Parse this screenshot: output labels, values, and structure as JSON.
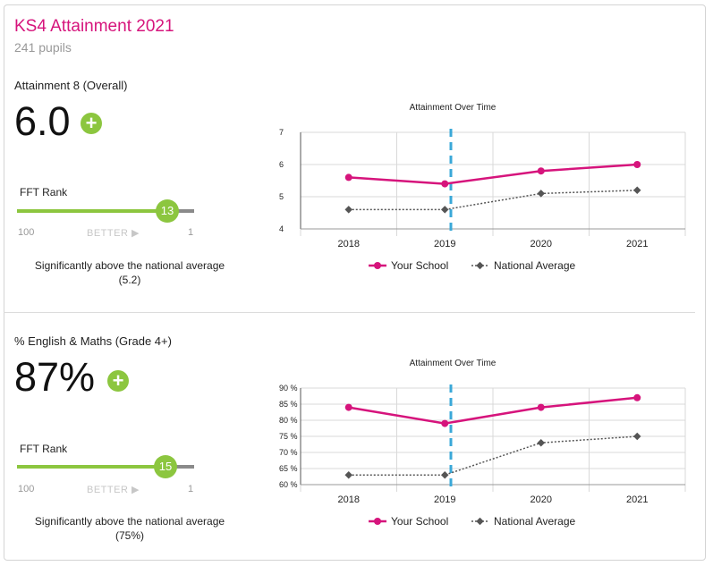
{
  "header": {
    "title": "KS4 Attainment 2021",
    "pupils": "241 pupils"
  },
  "metrics": [
    {
      "label": "Attainment 8 (Overall)",
      "value": "6.0",
      "badge": "+",
      "fft_label": "FFT Rank",
      "rank": "13",
      "rank_fraction": 0.85,
      "scale_left": "100",
      "scale_mid": "BETTER ▶",
      "scale_right": "1",
      "note": "Significantly above the national average (5.2)"
    },
    {
      "label": "% English & Maths (Grade 4+)",
      "value": "87%",
      "badge": "+",
      "fft_label": "FFT Rank",
      "rank": "15",
      "rank_fraction": 0.84,
      "scale_left": "100",
      "scale_mid": "BETTER ▶",
      "scale_right": "1",
      "note": "Significantly above the national average (75%)"
    }
  ],
  "colors": {
    "school": "#d6147c",
    "national": "#555555",
    "accent": "#8cc63f",
    "divider_line": "#3aa8d8"
  },
  "chart_data": [
    {
      "type": "line",
      "title": "Attainment Over Time",
      "categories": [
        "2018",
        "2019",
        "2020",
        "2021"
      ],
      "series": [
        {
          "name": "Your School",
          "values": [
            5.6,
            5.4,
            5.8,
            6.0
          ]
        },
        {
          "name": "National Average",
          "values": [
            4.6,
            4.6,
            5.1,
            5.2
          ]
        }
      ],
      "ylim": [
        4,
        7
      ],
      "yticks": [
        4,
        5,
        6,
        7
      ],
      "ytick_labels": [
        "4",
        "5",
        "6",
        "7"
      ],
      "grid": true,
      "legend": "bottom"
    },
    {
      "type": "line",
      "title": "Attainment Over Time",
      "categories": [
        "2018",
        "2019",
        "2020",
        "2021"
      ],
      "series": [
        {
          "name": "Your School",
          "values": [
            84,
            79,
            84,
            87
          ]
        },
        {
          "name": "National Average",
          "values": [
            63,
            63,
            73,
            75
          ]
        }
      ],
      "ylim": [
        60,
        90
      ],
      "yticks": [
        60,
        65,
        70,
        75,
        80,
        85,
        90
      ],
      "ytick_labels": [
        "60 %",
        "65 %",
        "70 %",
        "75 %",
        "80 %",
        "85 %",
        "90 %"
      ],
      "grid": true,
      "legend": "bottom"
    }
  ]
}
